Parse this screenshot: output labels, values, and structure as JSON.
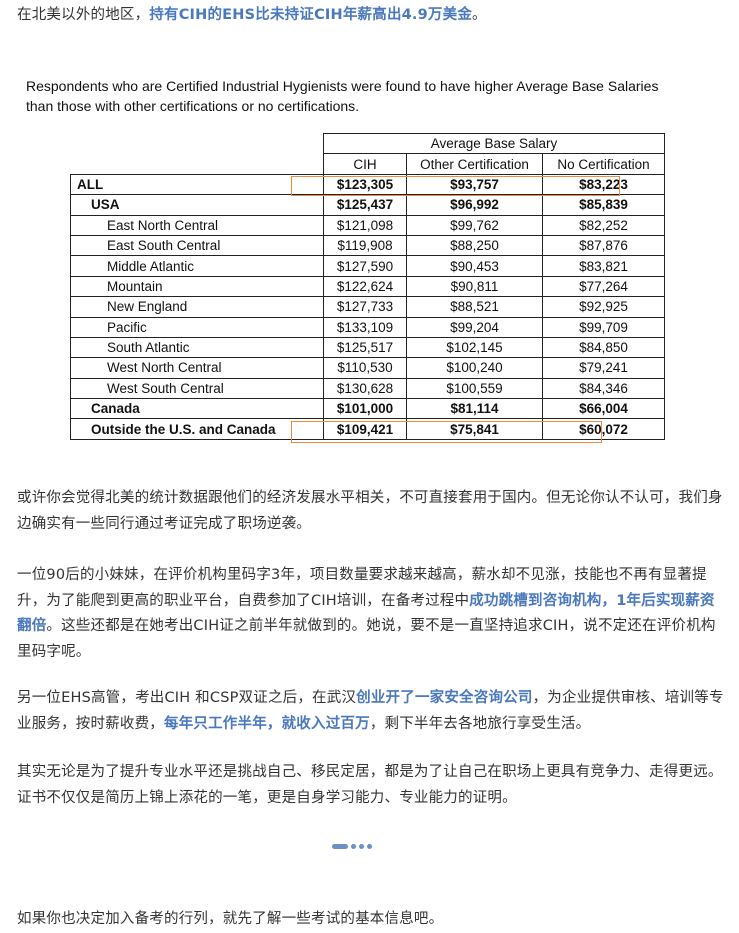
{
  "intro": [
    {
      "text": "在北美以外的地区，",
      "bold": false
    },
    {
      "text": "持有CIH的EHS比未持证CIH年薪高出4.9万美金",
      "bold": true
    },
    {
      "text": "。",
      "bold": false
    }
  ],
  "figure": {
    "caption": "Respondents who are Certified Industrial Hygienists were found to have higher Average Base Salaries than those with other certifications or no certifications.",
    "group_header": "Average Base Salary",
    "columns": [
      "CIH",
      "Other Certification",
      "No Certification"
    ],
    "rows": [
      {
        "label": "ALL",
        "level": 0,
        "bold": true,
        "values": [
          "$123,305",
          "$93,757",
          "$83,223"
        ]
      },
      {
        "label": "USA",
        "level": 1,
        "bold": true,
        "values": [
          "$125,437",
          "$96,992",
          "$85,839"
        ]
      },
      {
        "label": "East North Central",
        "level": 2,
        "bold": false,
        "values": [
          "$121,098",
          "$99,762",
          "$82,252"
        ]
      },
      {
        "label": "East South Central",
        "level": 2,
        "bold": false,
        "values": [
          "$119,908",
          "$88,250",
          "$87,876"
        ]
      },
      {
        "label": "Middle Atlantic",
        "level": 2,
        "bold": false,
        "values": [
          "$127,590",
          "$90,453",
          "$83,821"
        ]
      },
      {
        "label": "Mountain",
        "level": 2,
        "bold": false,
        "values": [
          "$122,624",
          "$90,811",
          "$77,264"
        ]
      },
      {
        "label": "New England",
        "level": 2,
        "bold": false,
        "values": [
          "$127,733",
          "$88,521",
          "$92,925"
        ]
      },
      {
        "label": "Pacific",
        "level": 2,
        "bold": false,
        "values": [
          "$133,109",
          "$99,204",
          "$99,709"
        ]
      },
      {
        "label": "South Atlantic",
        "level": 2,
        "bold": false,
        "values": [
          "$125,517",
          "$102,145",
          "$84,850"
        ]
      },
      {
        "label": "West North Central",
        "level": 2,
        "bold": false,
        "values": [
          "$110,530",
          "$100,240",
          "$79,241"
        ]
      },
      {
        "label": "West South Central",
        "level": 2,
        "bold": false,
        "values": [
          "$130,628",
          "$100,559",
          "$84,346"
        ]
      },
      {
        "label": "Canada",
        "level": 1,
        "bold": true,
        "values": [
          "$101,000",
          "$81,114",
          "$66,004"
        ]
      },
      {
        "label": "Outside the U.S. and Canada",
        "level": 1,
        "bold": true,
        "values": [
          "$109,421",
          "$75,841",
          "$60,072"
        ]
      }
    ],
    "highlight_color": "#f08a40"
  },
  "paragraphs": [
    [
      {
        "text": "或许你会觉得北美的统计数据跟他们的经济发展水平相关，不可直接套用于国内。但无论你认不认可，我们身边确实有一些同行通过考证完成了职场逆袭。",
        "bold": false
      }
    ],
    [
      {
        "text": "一位90后的小妹妹，在评价机构里码字3年，项目数量要求越来越高，薪水却不见涨，技能也不再有显著提升，为了能爬到更高的职业平台，自费参加了CIH培训，在备考过程中",
        "bold": false
      },
      {
        "text": "成功跳槽到咨询机构，1年后实现薪资翻倍",
        "bold": true
      },
      {
        "text": "。这些还都是在她考出CIH证之前半年就做到的。她说，要不是一直坚持追求CIH，说不定还在评价机构里码字呢。",
        "bold": false
      }
    ],
    [
      {
        "text": "另一位EHS高管，考出CIH 和CSP双证之后，在武汉",
        "bold": false
      },
      {
        "text": "创业开了一家安全咨询公司",
        "bold": true
      },
      {
        "text": "，为企业提供审核、培训等专业服务，按时薪收费，",
        "bold": false
      },
      {
        "text": "每年只工作半年，就收入过百万",
        "bold": true
      },
      {
        "text": "，剩下半年去各地旅行享受生活。",
        "bold": false
      }
    ],
    [
      {
        "text": "其实无论是为了提升专业水平还是挑战自己、移民定居，都是为了让自己在职场上更具有竞争力、走得更远。证书不仅仅是简历上锦上添花的一笔，更是自身学习能力、专业能力的证明。",
        "bold": false
      }
    ]
  ],
  "outro": "如果你也决定加入备考的行列，就先了解一些考试的基本信息吧。",
  "accent_color": "#4a78bd",
  "divider_icon": "dots-divider"
}
